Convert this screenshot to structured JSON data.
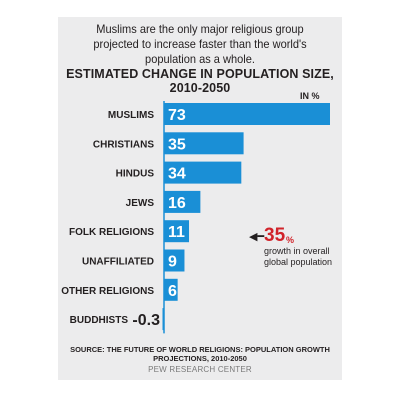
{
  "intro": "Muslims are the only major religious group projected to increase faster than the world's population as a whole.",
  "unit": "IN %",
  "annotation": {
    "value": "35",
    "percent_sign": "%",
    "text": "growth in overall global population"
  },
  "source": "SOURCE: THE FUTURE OF WORLD RELIGIONS: POPULATION GROWTH PROJECTIONS, 2010-2050",
  "credit": "PEW RESEARCH CENTER",
  "colors": {
    "bar": "#1a8fd6",
    "annotation": "#d1232a",
    "panel": "#ececed"
  },
  "chart_data": {
    "type": "bar",
    "orientation": "horizontal",
    "title": "ESTIMATED CHANGE IN POPULATION SIZE, 2010-2050",
    "categories": [
      "MUSLIMS",
      "CHRISTIANS",
      "HINDUS",
      "JEWS",
      "FOLK RELIGIONS",
      "UNAFFILIATED",
      "OTHER RELIGIONS",
      "BUDDHISTS"
    ],
    "values": [
      73,
      35,
      34,
      16,
      11,
      9,
      6,
      -0.3
    ],
    "value_labels": [
      "73",
      "35",
      "34",
      "16",
      "11",
      "9",
      "6",
      "-0.3"
    ],
    "xlim": [
      0,
      73
    ],
    "grid": false,
    "legend": "none"
  }
}
